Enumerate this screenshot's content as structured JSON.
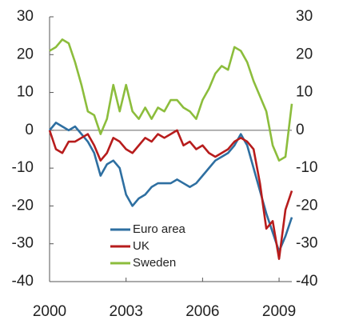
{
  "chart_data": {
    "type": "line",
    "x": [
      2000,
      2000.25,
      2000.5,
      2000.75,
      2001,
      2001.25,
      2001.5,
      2001.75,
      2002,
      2002.25,
      2002.5,
      2002.75,
      2003,
      2003.25,
      2003.5,
      2003.75,
      2004,
      2004.25,
      2004.5,
      2004.75,
      2005,
      2005.25,
      2005.5,
      2005.75,
      2006,
      2006.25,
      2006.5,
      2006.75,
      2007,
      2007.25,
      2007.5,
      2007.75,
      2008,
      2008.25,
      2008.5,
      2008.75,
      2009,
      2009.25,
      2009.5
    ],
    "series": [
      {
        "name": "Euro area",
        "color": "#2e6fa1",
        "values": [
          0,
          2,
          1,
          0,
          1,
          -1,
          -3,
          -6,
          -12,
          -9,
          -8,
          -10,
          -17,
          -20,
          -18,
          -17,
          -15,
          -14,
          -14,
          -14,
          -13,
          -14,
          -15,
          -14,
          -12,
          -10,
          -8,
          -7,
          -6,
          -4,
          -1,
          -4,
          -10,
          -16,
          -22,
          -27,
          -32,
          -28,
          -23
        ]
      },
      {
        "name": "UK",
        "color": "#b71c1c",
        "values": [
          0,
          -5,
          -6,
          -3,
          -3,
          -2,
          -1,
          -4,
          -8,
          -6,
          -2,
          -3,
          -5,
          -6,
          -4,
          -2,
          -3,
          -1,
          -2,
          -1,
          0,
          -4,
          -3,
          -5,
          -4,
          -6,
          -7,
          -6,
          -5,
          -3,
          -2,
          -3,
          -5,
          -14,
          -26,
          -24,
          -34,
          -21,
          -16
        ]
      },
      {
        "name": "Sweden",
        "color": "#8cbd3c",
        "values": [
          21,
          22,
          24,
          23,
          18,
          12,
          5,
          4,
          -1,
          3,
          12,
          5,
          12,
          5,
          3,
          6,
          3,
          6,
          5,
          8,
          8,
          6,
          5,
          3,
          8,
          11,
          15,
          17,
          16,
          22,
          21,
          18,
          13,
          9,
          5,
          -4,
          -8,
          -7,
          7
        ]
      }
    ],
    "xlim": [
      2000,
      2009.5
    ],
    "xticks": [
      2000,
      2003,
      2006,
      2009
    ],
    "ylim": [
      -40,
      30
    ],
    "yticks": [
      -40,
      -30,
      -20,
      -10,
      0,
      10,
      20,
      30
    ],
    "y2lim": [
      -40,
      30
    ],
    "y2ticks": [
      -40,
      -30,
      -20,
      -10,
      0,
      10,
      20,
      30
    ]
  }
}
